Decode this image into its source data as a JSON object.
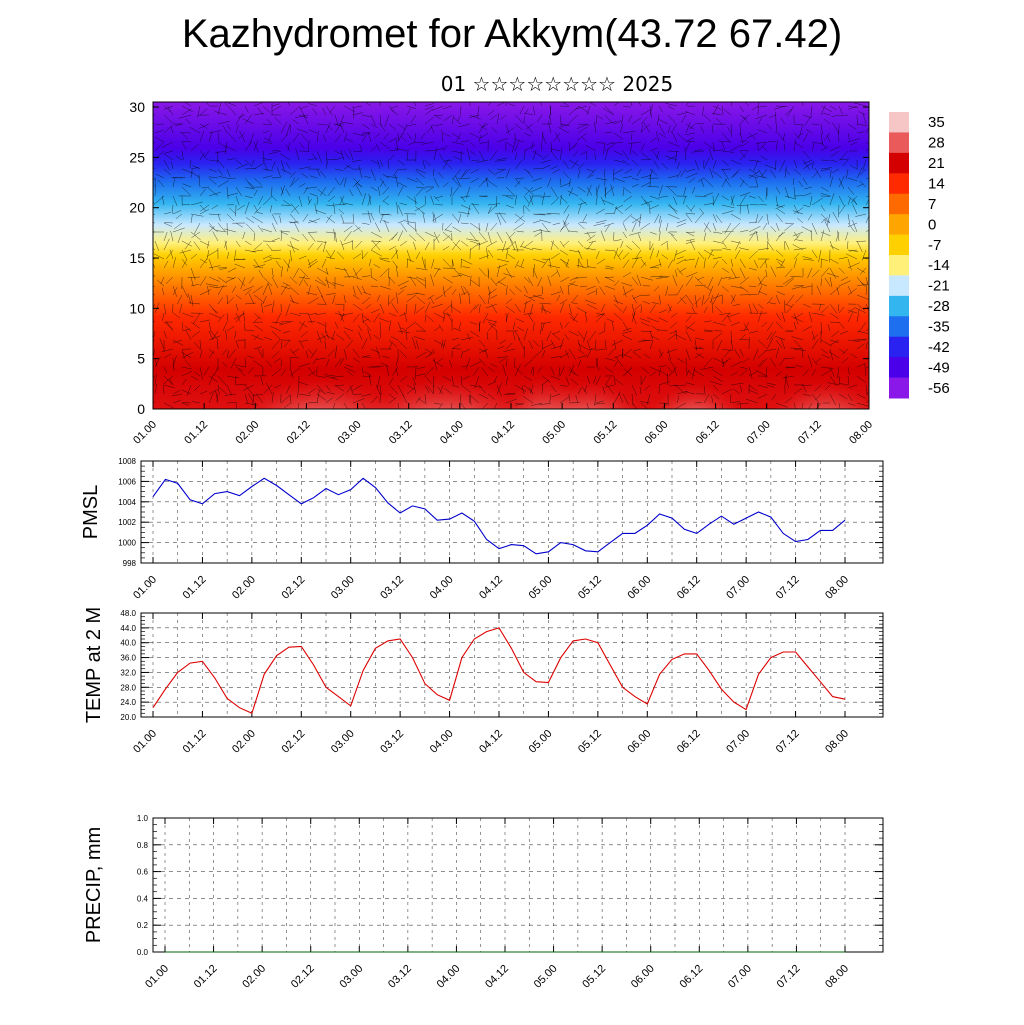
{
  "header": {
    "title": "Kazhydromet for Akkym(43.72 67.42)",
    "subtitle_day": "01",
    "subtitle_month": "☆☆☆☆☆☆☆☆",
    "subtitle_year": "2025"
  },
  "time_ticks": [
    "01.00",
    "01.12",
    "02.00",
    "02.12",
    "03.00",
    "03.12",
    "04.00",
    "04.12",
    "05.00",
    "05.12",
    "06.00",
    "06.12",
    "07.00",
    "07.12",
    "08.00"
  ],
  "chart_data": [
    {
      "type": "heatmap",
      "title": "",
      "xlabel": "",
      "ylabel": "",
      "x": [
        "01.00",
        "01.12",
        "02.00",
        "02.12",
        "03.00",
        "03.12",
        "04.00",
        "04.12",
        "05.00",
        "05.12",
        "06.00",
        "06.12",
        "07.00",
        "07.12",
        "08.00"
      ],
      "y_ticks": [
        0,
        5,
        10,
        15,
        20,
        25,
        30
      ],
      "ylim": [
        0,
        30.5
      ],
      "colorbar_labels": [
        35,
        28,
        21,
        14,
        7,
        0,
        -7,
        -14,
        -21,
        -28,
        -35,
        -42,
        -49,
        -56
      ],
      "colorbar_colors": [
        "#f6c6c6",
        "#ea5a5a",
        "#d40000",
        "#ff2a00",
        "#ff6a00",
        "#ffa500",
        "#ffd000",
        "#fff07a",
        "#c8e8ff",
        "#33b5f0",
        "#1e6ef0",
        "#2a22f0",
        "#4a00e8",
        "#8a18e8"
      ],
      "field": "temperature vs altitude (km) with wind barbs"
    },
    {
      "type": "line",
      "ylabel": "PMSL",
      "ylim": [
        998,
        1008
      ],
      "y_ticks": [
        998,
        1000,
        1002,
        1004,
        1006,
        1008
      ],
      "x_ticks": [
        "01.00",
        "01.12",
        "02.00",
        "02.12",
        "03.00",
        "03.12",
        "04.00",
        "04.12",
        "05.00",
        "05.12",
        "06.00",
        "06.12",
        "07.00",
        "07.12",
        "08.00"
      ],
      "color": "#0000cc",
      "series": [
        {
          "values": [
            1004.5,
            1006.2,
            1005.8,
            1004.2,
            1003.8,
            1004.8,
            1005.0,
            1004.6,
            1005.5,
            1006.3,
            1005.6,
            1004.7,
            1003.8,
            1004.4,
            1005.3,
            1004.7,
            1005.2,
            1006.3,
            1005.4,
            1003.9,
            1002.9,
            1003.6,
            1003.3,
            1002.2,
            1002.3,
            1002.9,
            1002.1,
            1000.3,
            999.4,
            999.8,
            999.7,
            998.9,
            999.1,
            1000.0,
            999.8,
            999.2,
            999.1,
            1000.0,
            1000.9,
            1000.9,
            1001.7,
            1002.8,
            1002.4,
            1001.3,
            1000.9,
            1001.8,
            1002.6,
            1001.8,
            1002.4,
            1003.0,
            1002.5,
            1000.9,
            1000.1,
            1000.3,
            1001.2,
            1001.2,
            1002.2
          ]
        }
      ]
    },
    {
      "type": "line",
      "ylabel": "TEMP at 2 M",
      "ylim": [
        20.0,
        48.0
      ],
      "y_ticks": [
        "20.0",
        "24.0",
        "28.0",
        "32.0",
        "36.0",
        "40.0",
        "44.0",
        "48.0"
      ],
      "x_ticks": [
        "01.00",
        "01.12",
        "02.00",
        "02.12",
        "03.00",
        "03.12",
        "04.00",
        "04.12",
        "05.00",
        "05.12",
        "06.00",
        "06.12",
        "07.00",
        "07.12",
        "08.00"
      ],
      "color": "#dd0000",
      "series": [
        {
          "values": [
            22.5,
            27.5,
            32.0,
            34.5,
            35.0,
            30.5,
            25.0,
            22.5,
            21.0,
            31.5,
            36.5,
            38.8,
            39.0,
            34.0,
            28.0,
            25.5,
            23.0,
            32.5,
            38.5,
            40.5,
            41.0,
            36.0,
            29.0,
            26.0,
            24.5,
            36.0,
            41.0,
            43.0,
            44.0,
            38.5,
            32.0,
            29.5,
            29.3,
            36.0,
            40.5,
            41.0,
            40.0,
            34.0,
            28.0,
            25.5,
            23.5,
            31.5,
            35.5,
            37.0,
            37.0,
            32.5,
            27.5,
            24.0,
            22.0,
            31.5,
            36.0,
            37.5,
            37.5,
            33.5,
            29.5,
            25.5,
            24.8
          ]
        }
      ]
    },
    {
      "type": "line",
      "ylabel": "PRECIP, mm",
      "ylim": [
        0.0,
        1.0
      ],
      "y_ticks": [
        "0.0",
        "0.2",
        "0.4",
        "0.6",
        "0.8",
        "1.0"
      ],
      "x_ticks": [
        "01.00",
        "01.12",
        "02.00",
        "02.12",
        "03.00",
        "03.12",
        "04.00",
        "04.12",
        "05.00",
        "05.12",
        "06.00",
        "06.12",
        "07.00",
        "07.12",
        "08.00"
      ],
      "color": "#006600",
      "series": [
        {
          "values": [
            0,
            0,
            0,
            0,
            0,
            0,
            0,
            0,
            0,
            0,
            0,
            0,
            0,
            0,
            0,
            0,
            0,
            0,
            0,
            0,
            0,
            0,
            0,
            0,
            0,
            0,
            0,
            0,
            0,
            0,
            0,
            0,
            0,
            0,
            0,
            0,
            0,
            0,
            0,
            0,
            0,
            0,
            0,
            0,
            0,
            0,
            0,
            0,
            0,
            0,
            0,
            0,
            0,
            0,
            0,
            0,
            0
          ]
        }
      ]
    }
  ]
}
